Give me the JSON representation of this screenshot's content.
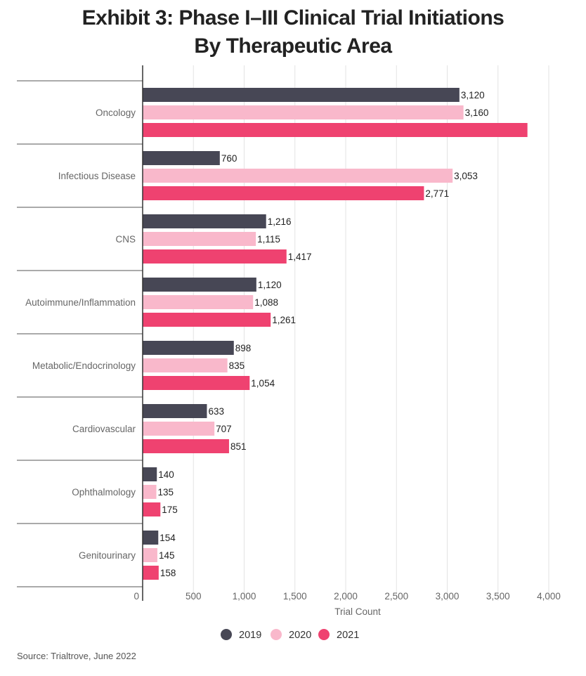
{
  "chart_data": {
    "type": "bar",
    "orientation": "horizontal",
    "title_lines": [
      "Exhibit 3: Phase I–III Clinical Trial Initiations",
      "By Therapeutic Area"
    ],
    "categories": [
      "Oncology",
      "Infectious Disease",
      "CNS",
      "Autoimmune/Inflammation",
      "Metabolic/Endocrinology",
      "Cardiovascular",
      "Ophthalmology",
      "Genitourinary"
    ],
    "series": [
      {
        "name": "2019",
        "color": "#474755",
        "values": [
          3120,
          760,
          1216,
          1120,
          898,
          633,
          140,
          154
        ],
        "labels": [
          "3,120",
          "760",
          "1,216",
          "1,120",
          "898",
          "633",
          "140",
          "154"
        ]
      },
      {
        "name": "2020",
        "color": "#f9b8cb",
        "values": [
          3160,
          3053,
          1115,
          1088,
          835,
          707,
          135,
          145
        ],
        "labels": [
          "3,160",
          "3,053",
          "1,115",
          "1,088",
          "835",
          "707",
          "135",
          "145"
        ]
      },
      {
        "name": "2021",
        "color": "#ef4270",
        "values": [
          3790,
          2771,
          1417,
          1261,
          1054,
          851,
          175,
          158
        ],
        "labels": [
          "",
          "2,771",
          "1,417",
          "1,261",
          "1,054",
          "851",
          "175",
          "158"
        ]
      }
    ],
    "xlabel": "Trial Count",
    "xlim": [
      0,
      4000
    ],
    "xticks": [
      0,
      500,
      1000,
      1500,
      2000,
      2500,
      3000,
      3500,
      4000
    ],
    "xtick_labels": [
      "0",
      "500",
      "1,000",
      "1,500",
      "2,000",
      "2,500",
      "3,000",
      "3,500",
      "4,000"
    ],
    "grid": true,
    "legend_position": "bottom-center"
  },
  "source": "Source: Trialtrove, June 2022"
}
